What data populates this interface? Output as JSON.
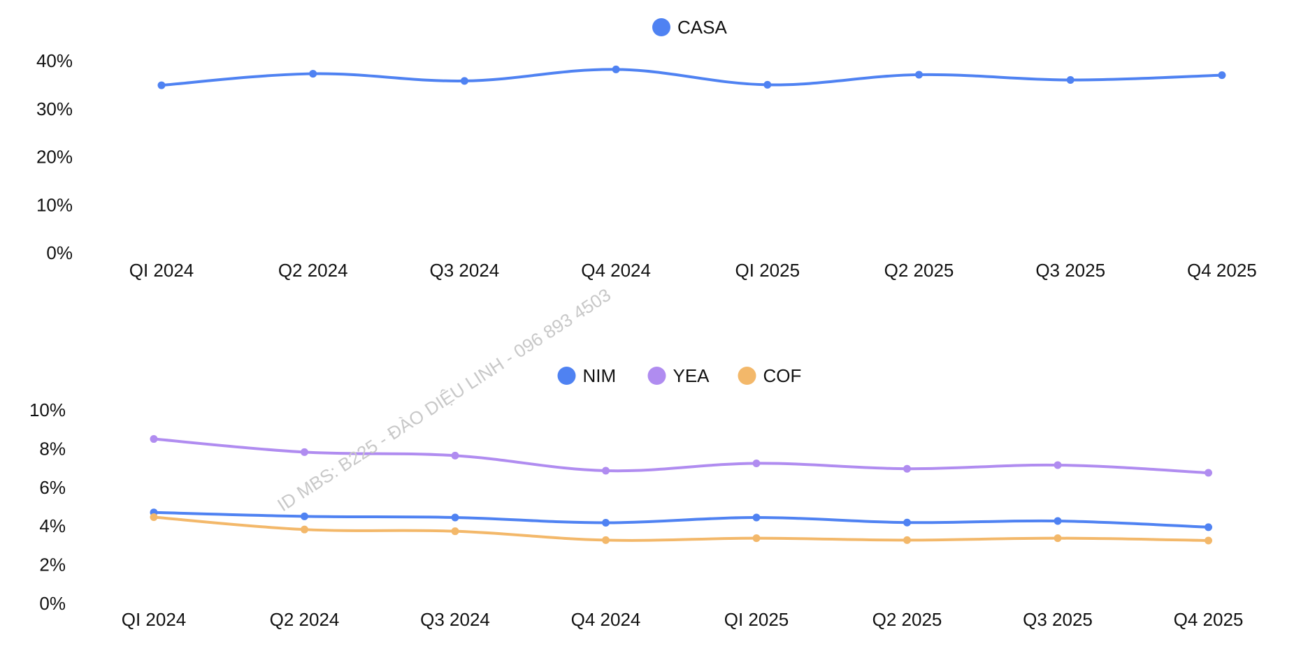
{
  "watermark": "ID MBS: B225 - ĐÀO DIỆU LINH - 096 893 4503",
  "chart_data": [
    {
      "type": "line",
      "categories": [
        "QI 2024",
        "Q2 2024",
        "Q3 2024",
        "Q4 2024",
        "QI 2025",
        "Q2 2025",
        "Q3 2025",
        "Q4 2025"
      ],
      "series": [
        {
          "name": "CASA",
          "color": "#4f82f2",
          "values": [
            34.9,
            37.3,
            35.8,
            38.2,
            35.0,
            37.1,
            36.0,
            37.0
          ]
        }
      ],
      "y_ticks": [
        "0%",
        "10%",
        "20%",
        "30%",
        "40%"
      ],
      "ylim": [
        0,
        40
      ],
      "legend": "top-center",
      "grid": false
    },
    {
      "type": "line",
      "categories": [
        "QI 2024",
        "Q2 2024",
        "Q3 2024",
        "Q4 2024",
        "QI 2025",
        "Q2 2025",
        "Q3 2025",
        "Q4 2025"
      ],
      "series": [
        {
          "name": "NIM",
          "color": "#4f82f2",
          "values": [
            4.7,
            4.5,
            4.44,
            4.17,
            4.44,
            4.18,
            4.26,
            3.94
          ]
        },
        {
          "name": "YEA",
          "color": "#b08cf0",
          "values": [
            8.5,
            7.82,
            7.64,
            6.86,
            7.24,
            6.96,
            7.15,
            6.75
          ]
        },
        {
          "name": "COF",
          "color": "#f3b86a",
          "values": [
            4.46,
            3.82,
            3.73,
            3.27,
            3.37,
            3.27,
            3.37,
            3.25
          ]
        }
      ],
      "y_ticks": [
        "0%",
        "2%",
        "4%",
        "6%",
        "8%",
        "10%"
      ],
      "ylim": [
        0,
        10
      ],
      "legend": "top-center",
      "grid": false
    }
  ]
}
